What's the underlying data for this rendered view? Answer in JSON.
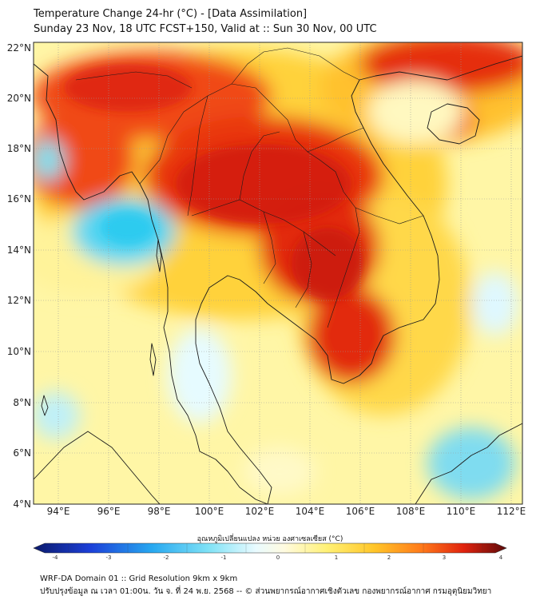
{
  "header": {
    "title_line1": "Temperature Change 24-hr (°C) - [Data Assimilation]",
    "title_line2": "Sunday 23 Nov, 18 UTC FCST+150, Valid at :: Sun 30 Nov, 00 UTC"
  },
  "map": {
    "lat_labels": [
      "22°N",
      "20°N",
      "18°N",
      "16°N",
      "14°N",
      "12°N",
      "10°N",
      "8°N",
      "6°N",
      "4°N"
    ],
    "lon_labels": [
      "94°E",
      "96°E",
      "98°E",
      "100°E",
      "102°E",
      "104°E",
      "106°E",
      "108°E",
      "110°E",
      "112°E"
    ],
    "lat_range": [
      4,
      22.2
    ],
    "lon_range": [
      93,
      112.4
    ]
  },
  "colorbar": {
    "label": "อุณหภูมิเปลี่ยนแปลง หน่วย องศาเซลเซียส (°C)",
    "ticks": [
      "-4",
      "-3",
      "-2",
      "-1",
      "0",
      "1",
      "2",
      "3",
      "4"
    ],
    "range": [
      -4,
      4
    ]
  },
  "footer": {
    "line1": "WRF-DA Domain 01 :: Grid Resolution 9km x 9km",
    "line2": "ปรับปรุงข้อมูล ณ เวลา 01:00น. วัน จ. ที่ 24 พ.ย. 2568 -- © ส่วนพยากรณ์อากาศเชิงตัวเลข กองพยากรณ์อากาศ กรมอุตุนิยมวิทยา"
  },
  "colors": {
    "ocean_base": "#fffdb8",
    "warm": "#fbbf24",
    "hot": "#e03010",
    "cold": "#22d3ee"
  }
}
